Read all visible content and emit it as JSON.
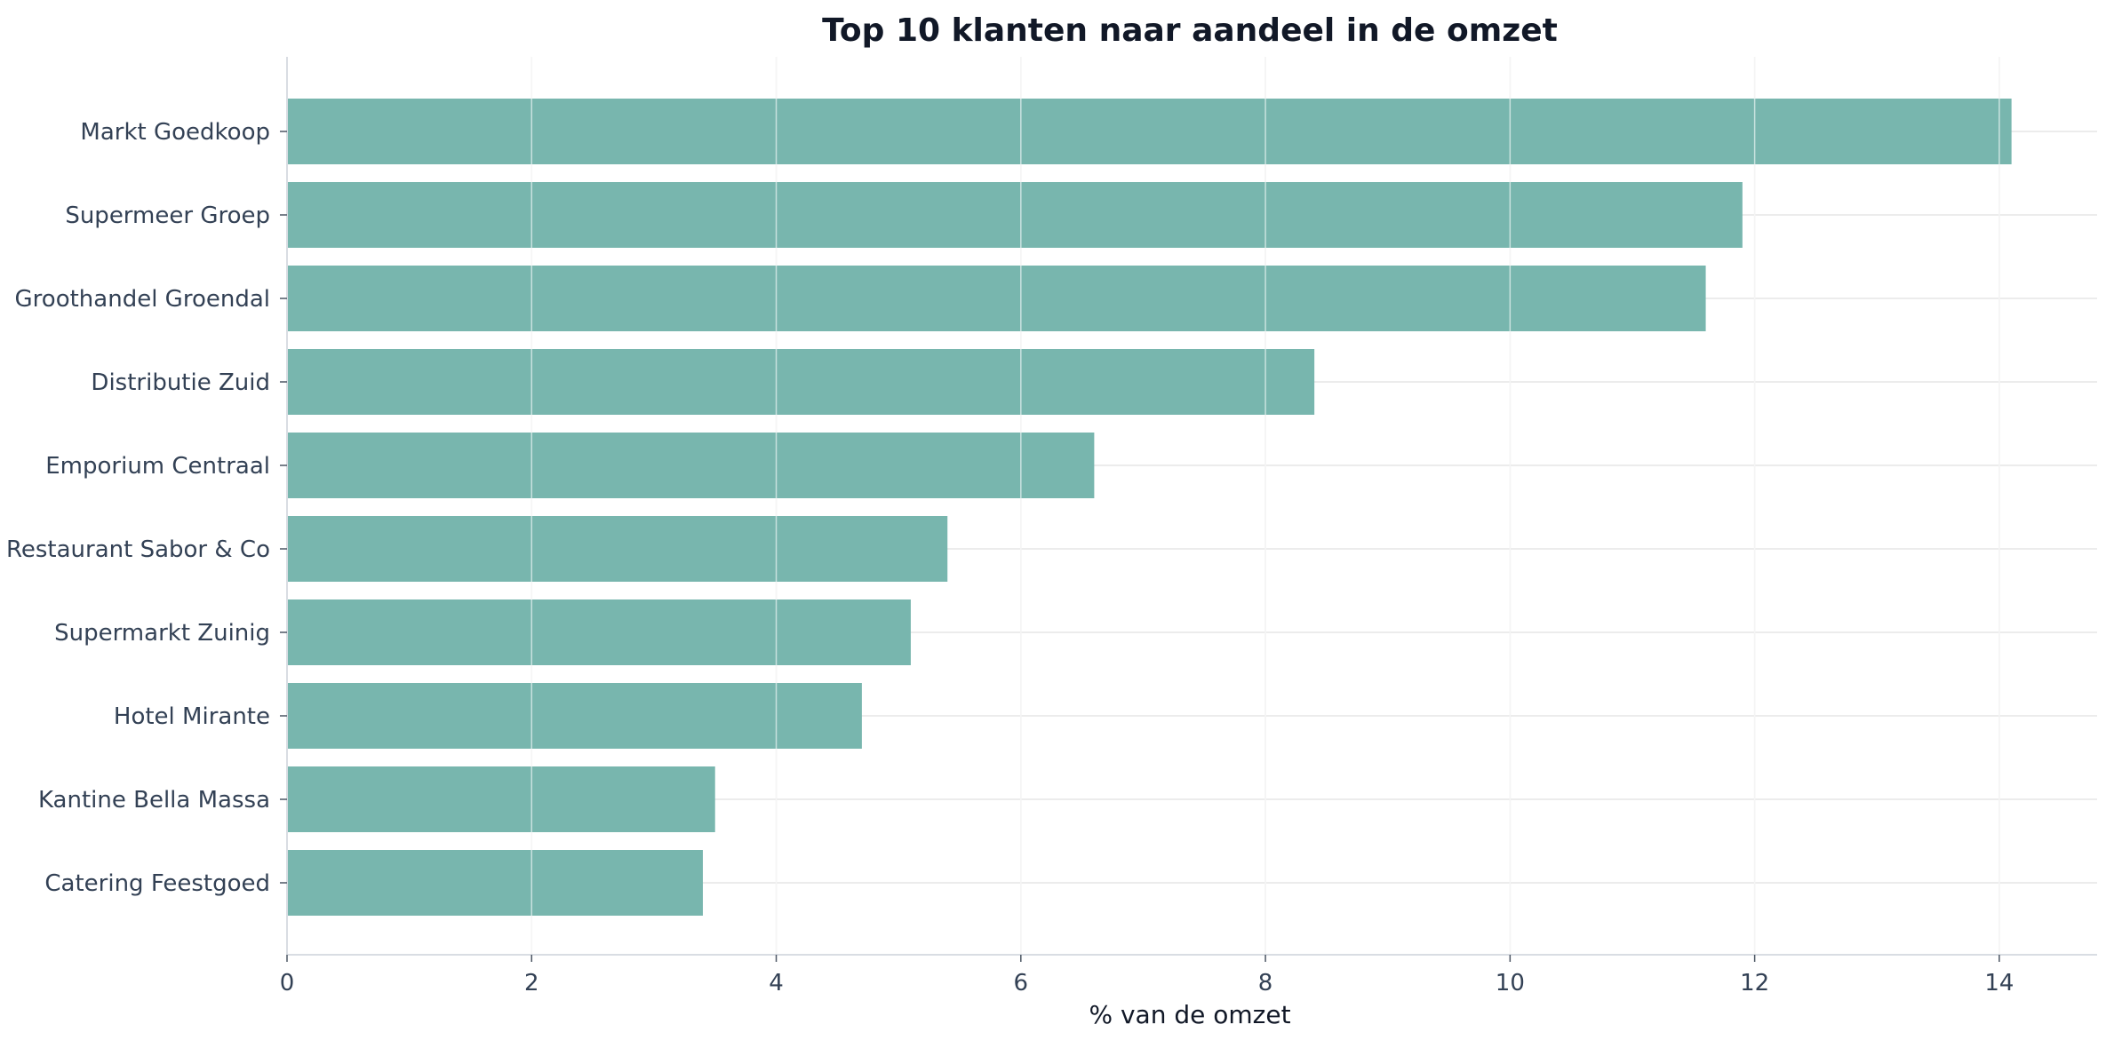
{
  "chart_data": {
    "type": "bar",
    "orientation": "horizontal",
    "title": "Top 10 klanten naar aandeel in de omzet",
    "xlabel": "% van de omzet",
    "ylabel": "",
    "categories": [
      "Markt Goedkoop",
      "Supermeer Groep",
      "Groothandel Groendal",
      "Distributie Zuid",
      "Emporium Centraal",
      "Restaurant Sabor & Co",
      "Supermarkt Zuinig",
      "Hotel Mirante",
      "Kantine Bella Massa",
      "Catering Feestgoed"
    ],
    "values": [
      14.1,
      11.9,
      11.6,
      8.4,
      6.6,
      5.4,
      5.1,
      4.7,
      3.5,
      3.4
    ],
    "xlim": [
      0,
      14.8
    ],
    "xticks": [
      0,
      2,
      4,
      6,
      8,
      10,
      12,
      14
    ],
    "grid": true,
    "bar_color": "#78b6ae",
    "grid_color": "#e6e6e6",
    "axis_color": "#d9dde3"
  }
}
